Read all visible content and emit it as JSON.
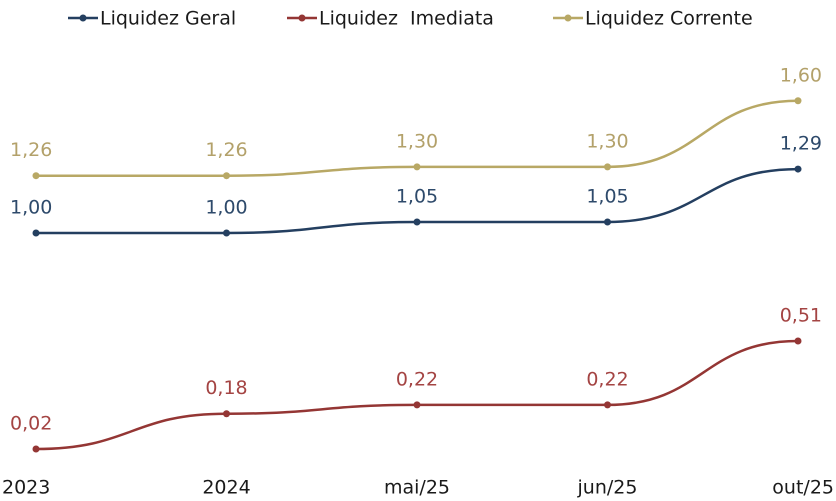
{
  "chart_data": {
    "type": "line",
    "categories": [
      "2023",
      "2024",
      "mai/25",
      "jun/25",
      "out/25"
    ],
    "series": [
      {
        "name": "Liquidez Geral",
        "color": "#243f60",
        "label_color": "#2e4a6b",
        "values": [
          1.0,
          1.0,
          1.05,
          1.05,
          1.29
        ],
        "value_labels": [
          "1,00",
          "1,00",
          "1,05",
          "1,05",
          "1,29"
        ]
      },
      {
        "name": "Liquidez  Imediata",
        "color": "#943634",
        "label_color": "#a44443",
        "values": [
          0.02,
          0.18,
          0.22,
          0.22,
          0.51
        ],
        "value_labels": [
          "0,02",
          "0,18",
          "0,22",
          "0,22",
          "0,51"
        ]
      },
      {
        "name": "Liquidez Corrente",
        "color": "#b8a865",
        "label_color": "#b3a16a",
        "values": [
          1.26,
          1.26,
          1.3,
          1.3,
          1.6
        ],
        "value_labels": [
          "1,26",
          "1,26",
          "1,30",
          "1,30",
          "1,60"
        ]
      }
    ],
    "smooth": true,
    "legend": "top"
  }
}
